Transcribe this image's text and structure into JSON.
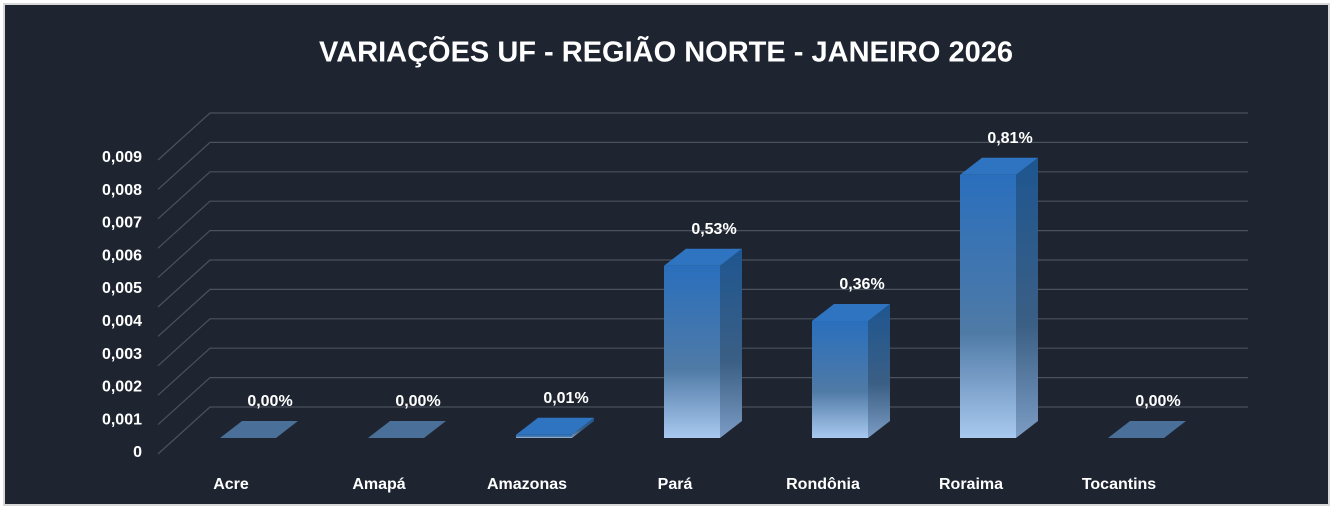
{
  "chart_data": {
    "type": "bar3d",
    "title": "VARIAÇÕES UF - REGIÃO NORTE - JANEIRO 2026",
    "categories": [
      "Acre",
      "Amapá",
      "Amazonas",
      "Pará",
      "Rondônia",
      "Roraima",
      "Tocantins"
    ],
    "values": [
      0,
      0,
      0.0001,
      0.0053,
      0.0036,
      0.0081,
      0
    ],
    "value_labels": [
      "0,00%",
      "0,00%",
      "0,01%",
      "0,53%",
      "0,36%",
      "0,81%",
      "0,00%"
    ],
    "color": "#2e74c0",
    "ylim": [
      0,
      0.01
    ],
    "yticks": [
      0,
      {
        "value": 0.001,
        "label": "0,001"
      },
      {
        "value": 0.002,
        "label": "0,002"
      },
      {
        "value": 0.003,
        "label": "0,003"
      },
      {
        "value": 0.004,
        "label": "0,004"
      },
      {
        "value": 0.005,
        "label": "0,005"
      },
      {
        "value": 0.006,
        "label": "0,006"
      },
      {
        "value": 0.007,
        "label": "0,007"
      },
      {
        "value": 0.008,
        "label": "0,008"
      },
      {
        "value": 0.009,
        "label": "0,009"
      }
    ],
    "grid": true
  }
}
